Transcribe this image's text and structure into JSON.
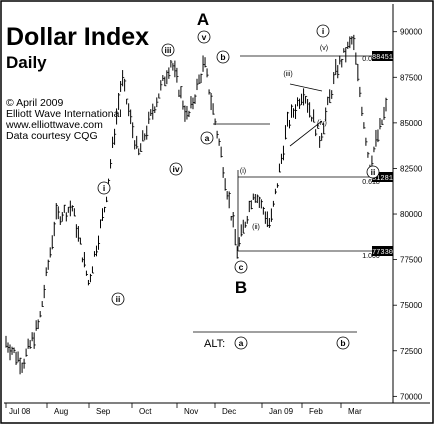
{
  "chart_data": {
    "type": "ohlc",
    "title": "Dollar Index",
    "subtitle": "Daily",
    "credits": [
      "© April 2009",
      "Elliott Wave International",
      "www.elliottwave.com",
      "Data courtesy CQG"
    ],
    "y_ticks": [
      "90000",
      "87500",
      "85000",
      "82500",
      "80000",
      "77500",
      "75000",
      "72500",
      "70000"
    ],
    "y_tick_values": [
      90000,
      87500,
      85000,
      82500,
      80000,
      77500,
      75000,
      72500,
      70000
    ],
    "ylim": [
      69800,
      91300
    ],
    "x_ticks": [
      "Jul 08",
      "Aug",
      "Sep",
      "Oct",
      "Nov",
      "Dec",
      "Jan 09",
      "Feb",
      "Mar"
    ],
    "price_tags": [
      "88451",
      "81281",
      "77330"
    ],
    "fib_labels": [
      "0.000",
      "0.618",
      "1.000"
    ],
    "waves": {
      "big": [
        "A",
        "B"
      ],
      "circled": [
        "i",
        "ii",
        "iii",
        "iv",
        "v",
        "a",
        "b",
        "c",
        "i",
        "ii"
      ],
      "small": [
        "(i)",
        "(ii)",
        "(iii)",
        "(iv)",
        "(v)"
      ]
    },
    "alt": {
      "label": "ALT:",
      "a": "a",
      "b": "b"
    },
    "path_points": [
      {
        "x": "Jul 08",
        "y": 73000
      },
      {
        "x": "Jul 08 mid",
        "y": 71800
      },
      {
        "x": "Aug",
        "y": 74000
      },
      {
        "x": "Aug late",
        "y": 79800
      },
      {
        "x": "Sep",
        "y": 80400
      },
      {
        "x": "Sep mid",
        "y": 76200
      },
      {
        "x": "Oct",
        "y": 80500
      },
      {
        "x": "Oct mid",
        "y": 87500
      },
      {
        "x": "Oct late",
        "y": 83200
      },
      {
        "x": "Nov",
        "y": 86000
      },
      {
        "x": "Nov mid",
        "y": 88400
      },
      {
        "x": "Nov late",
        "y": 85200
      },
      {
        "x": "Dec",
        "y": 88300
      },
      {
        "x": "Dec mid",
        "y": 83400
      },
      {
        "x": "Dec late",
        "y": 78000
      },
      {
        "x": "Jan 09",
        "y": 81300
      },
      {
        "x": "Jan 09 mid",
        "y": 79400
      },
      {
        "x": "Jan 09 late",
        "y": 84800
      },
      {
        "x": "Feb",
        "y": 86800
      },
      {
        "x": "Feb mid",
        "y": 84100
      },
      {
        "x": "Feb late",
        "y": 87900
      },
      {
        "x": "Mar",
        "y": 89600
      },
      {
        "x": "Mar mid",
        "y": 82700
      },
      {
        "x": "Mar late",
        "y": 85800
      }
    ]
  }
}
